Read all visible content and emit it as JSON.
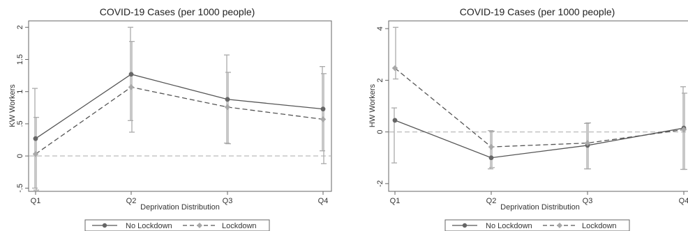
{
  "colors": {
    "no_lockdown": "#555555",
    "lockdown": "#a8a8a8",
    "ci_bar": "#aaaaaa",
    "zero_line": "#bbbbbb",
    "axis": "#666666"
  },
  "chart_data": [
    {
      "type": "line",
      "title": "COVID-19 Cases (per 1000 people)",
      "xlabel": "Deprivation Distribution",
      "ylabel": "KW Workers",
      "categories": [
        "Q1",
        "Q2",
        "Q3",
        "Q4"
      ],
      "ylim": [
        -0.55,
        2.1
      ],
      "yticks": [
        -0.5,
        0,
        0.5,
        1,
        1.5,
        2
      ],
      "ytick_labels": [
        "-.5",
        "0",
        ".5",
        "1",
        "1.5",
        "2"
      ],
      "reference_line": 0,
      "legend": "bottom-center",
      "series": [
        {
          "name": "No Lockdown",
          "values": [
            0.27,
            1.27,
            0.88,
            0.73
          ],
          "ci_low": [
            -0.5,
            0.55,
            0.2,
            0.08
          ],
          "ci_high": [
            1.05,
            2.0,
            1.57,
            1.39
          ]
        },
        {
          "name": "Lockdown",
          "values": [
            0.03,
            1.07,
            0.76,
            0.57
          ],
          "ci_low": [
            -0.53,
            0.37,
            0.19,
            -0.12
          ],
          "ci_high": [
            0.6,
            1.78,
            1.3,
            1.28
          ]
        }
      ]
    },
    {
      "type": "line",
      "title": "COVID-19 Cases (per 1000 people)",
      "xlabel": "Deprivation Distribution",
      "ylabel": "HW Workers",
      "categories": [
        "Q1",
        "Q2",
        "Q3",
        "Q4"
      ],
      "ylim": [
        -2.3,
        4.3
      ],
      "yticks": [
        -2,
        0,
        2,
        4
      ],
      "ytick_labels": [
        "-2",
        "0",
        "2",
        "4"
      ],
      "reference_line": 0,
      "legend": "bottom-center",
      "series": [
        {
          "name": "No Lockdown",
          "values": [
            0.45,
            -1.0,
            -0.52,
            0.15
          ],
          "ci_low": [
            -1.2,
            -1.43,
            -1.43,
            -1.45
          ],
          "ci_high": [
            0.93,
            0.05,
            0.33,
            1.75
          ]
        },
        {
          "name": "Lockdown",
          "values": [
            2.47,
            -0.58,
            -0.43,
            0.09
          ],
          "ci_low": [
            2.05,
            -1.38,
            -1.43,
            -1.45
          ],
          "ci_high": [
            4.05,
            0.03,
            0.35,
            1.5
          ]
        }
      ]
    }
  ]
}
